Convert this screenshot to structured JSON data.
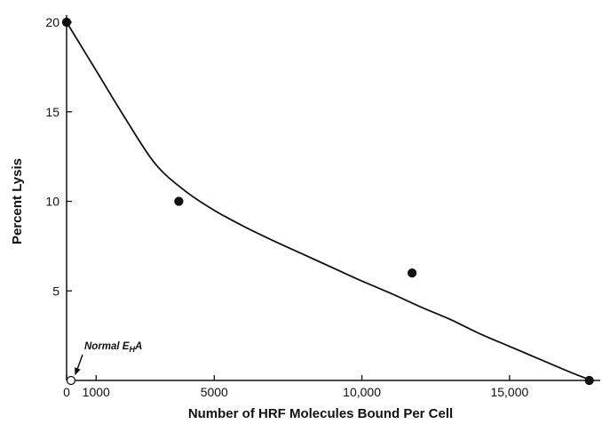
{
  "chart_data": {
    "type": "scatter",
    "title": "",
    "xlabel": "Number of HRF Molecules Bound Per Cell",
    "ylabel": "Percent Lysis",
    "xlim": [
      0,
      17800
    ],
    "ylim": [
      0,
      20
    ],
    "x_ticks": [
      0,
      1000,
      5000,
      10000,
      15000
    ],
    "x_tick_labels": [
      "0",
      "1000",
      "5000",
      "10,000",
      "15,000"
    ],
    "y_ticks": [
      5,
      10,
      15,
      20
    ],
    "y_tick_labels": [
      "5",
      "10",
      "15",
      "20"
    ],
    "grid": false,
    "series": [
      {
        "marker": "filled-circle",
        "x": [
          0,
          3800,
          11700,
          17700
        ],
        "y": [
          20,
          10,
          6,
          0
        ]
      },
      {
        "marker": "open-circle",
        "x": [
          150
        ],
        "y": [
          0
        ]
      }
    ],
    "fitted_curve": {
      "x": [
        0,
        1000,
        2000,
        3000,
        4000,
        5000,
        6000,
        7000,
        8000,
        9000,
        10000,
        11000,
        12000,
        13000,
        14000,
        15000,
        16000,
        17000,
        17700
      ],
      "y": [
        20.0,
        17.3,
        14.6,
        12.1,
        10.6,
        9.5,
        8.6,
        7.8,
        7.05,
        6.3,
        5.55,
        4.85,
        4.1,
        3.4,
        2.6,
        1.9,
        1.2,
        0.5,
        0.05
      ]
    },
    "annotations": [
      {
        "text_prefix": "Normal E",
        "text_sub": "H",
        "text_suffix": "A",
        "points_to_x": 150,
        "points_to_y": 0
      }
    ]
  }
}
